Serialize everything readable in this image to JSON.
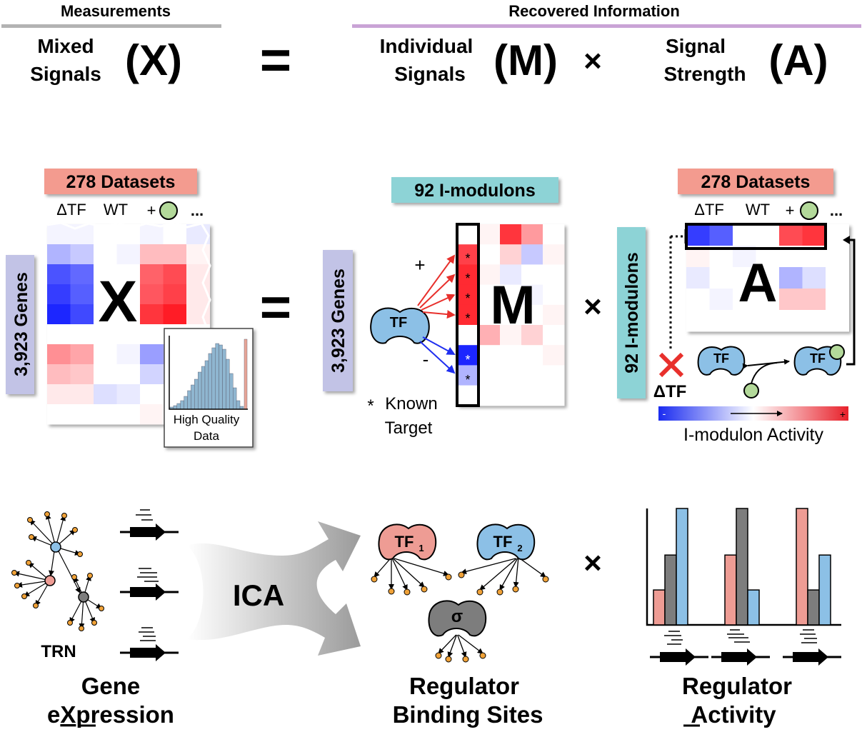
{
  "header": {
    "measurements": "Measurements",
    "recovered": "Recovered Information",
    "mixed_l1": "Mixed",
    "mixed_l2": "Signals",
    "x_symbol": "(X)",
    "equals": "=",
    "indiv_l1": "Individual",
    "indiv_l2": "Signals",
    "m_symbol": "(M)",
    "times": "×",
    "sig_l1": "Signal",
    "sig_l2": "Strength",
    "a_symbol": "(A)"
  },
  "x_matrix": {
    "datasets_badge": "278 Datasets",
    "col_dtf": "ΔTF",
    "col_wt": "WT",
    "col_plus": "+",
    "col_more": "...",
    "genes_label": "3,923 Genes",
    "letter": "X",
    "inset_l1": "High Quality",
    "inset_l2": "Data"
  },
  "m_matrix": {
    "imodulons_badge": "92 I-modulons",
    "genes_label": "3,923 Genes",
    "letter": "M",
    "tf_label": "TF",
    "plus": "+",
    "minus": "-",
    "star": "*",
    "known_l1": "Known",
    "known_l2": "Target"
  },
  "a_matrix": {
    "datasets_badge": "278 Datasets",
    "col_dtf": "ΔTF",
    "col_wt": "WT",
    "col_plus": "+",
    "col_more": "...",
    "imodulons_label": "92 I-modulons",
    "letter": "A",
    "tf_label": "TF",
    "delta_tf": "ΔTF",
    "scale_minus": "-",
    "scale_plus": "+",
    "scale_caption": "I-modulon Activity"
  },
  "bottom": {
    "trn": "TRN",
    "ica": "ICA",
    "tf1": "TF",
    "tf1_sub": "1",
    "tf2": "TF",
    "tf2_sub": "2",
    "sigma": "σ",
    "times": "×",
    "gene_l1": "Gene",
    "gene_l2_pre": "e",
    "gene_l2_u": "X",
    "gene_l2_post": "pression",
    "bind_l1": "Regulator",
    "bind_l2": "Binding Sites",
    "act_l1": "Regulator",
    "act_l2_u": "A",
    "act_l2_post": "ctivity"
  },
  "colors": {
    "red": "#e8302c",
    "blue": "#1f2ef0",
    "tf_blue": "#8cc0e6",
    "tf_red": "#ee9c94",
    "sigma_gray": "#7d7d7d",
    "teal_badge": "#8dd3d6",
    "salmon_badge": "#f39b8f",
    "lavender_label": "#c2c3e6",
    "measurements_rule": "#b3b3b3",
    "recovered_rule": "#c9a3d6",
    "node_orange": "#f0a238"
  },
  "bar_chart": {
    "groups": [
      {
        "red": 0.3,
        "gray": 0.6,
        "blue": 1.0
      },
      {
        "red": 0.6,
        "gray": 1.0,
        "blue": 0.3
      },
      {
        "red": 1.0,
        "gray": 0.3,
        "blue": 0.6
      }
    ]
  }
}
